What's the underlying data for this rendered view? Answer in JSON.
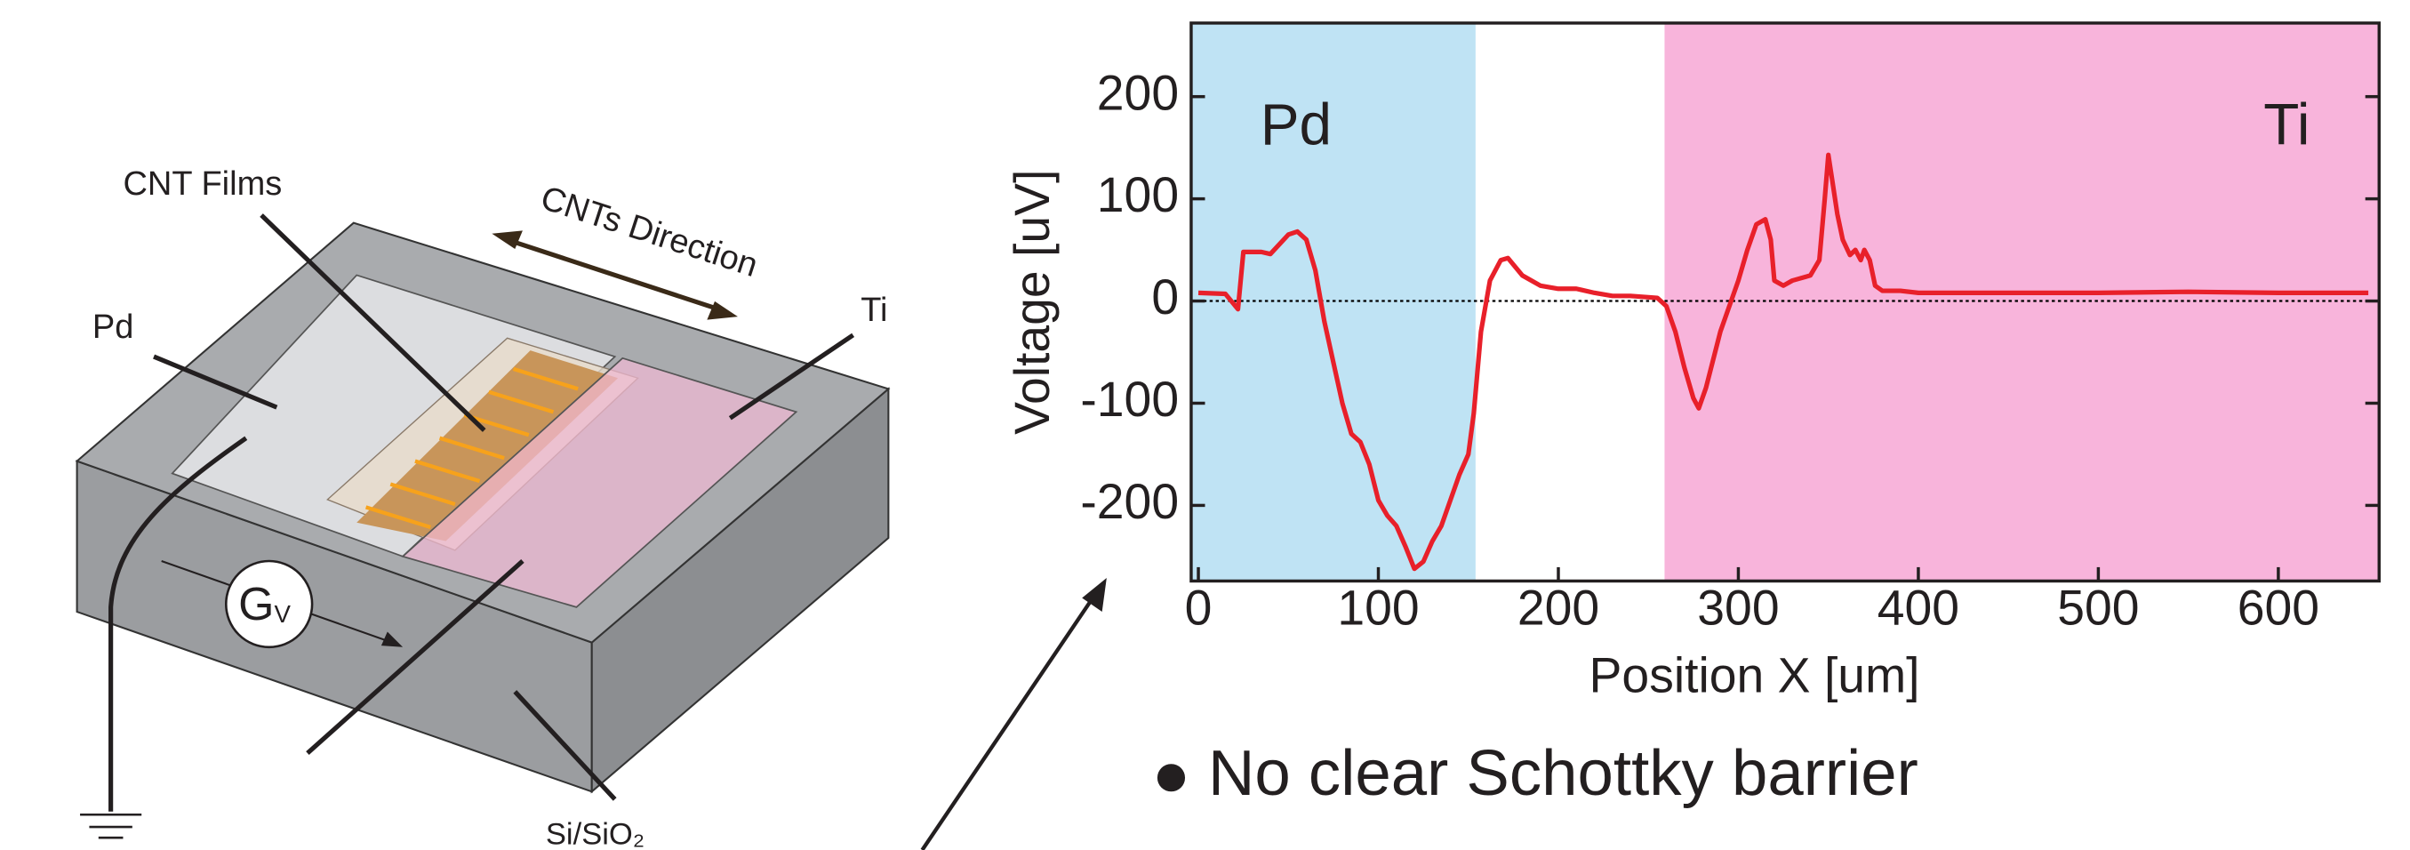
{
  "chart_data": {
    "type": "line",
    "x": [
      0,
      15,
      22,
      25,
      35,
      40,
      50,
      55,
      60,
      65,
      70,
      75,
      80,
      85,
      90,
      95,
      100,
      105,
      110,
      115,
      120,
      125,
      130,
      135,
      140,
      145,
      150,
      153,
      157,
      162,
      168,
      172,
      180,
      190,
      200,
      210,
      220,
      230,
      240,
      255,
      260,
      265,
      270,
      275,
      278,
      282,
      290,
      300,
      305,
      310,
      315,
      318,
      320,
      325,
      330,
      340,
      345,
      348,
      350,
      352,
      355,
      358,
      362,
      365,
      368,
      370,
      373,
      376,
      380,
      390,
      400,
      450,
      500,
      550,
      600,
      650
    ],
    "series": [
      {
        "color": "#e8202a",
        "values": [
          8,
          7,
          -8,
          48,
          48,
          46,
          65,
          68,
          60,
          30,
          -20,
          -60,
          -100,
          -130,
          -138,
          -160,
          -195,
          -210,
          -220,
          -240,
          -262,
          -255,
          -235,
          -220,
          -195,
          -170,
          -150,
          -110,
          -30,
          20,
          40,
          42,
          25,
          15,
          12,
          12,
          8,
          5,
          5,
          3,
          -5,
          -30,
          -65,
          -95,
          -105,
          -85,
          -30,
          20,
          50,
          75,
          80,
          60,
          20,
          15,
          20,
          25,
          40,
          100,
          143,
          120,
          85,
          60,
          45,
          50,
          40,
          50,
          40,
          15,
          10,
          10,
          8,
          8,
          8,
          9,
          8,
          8
        ]
      }
    ],
    "xlim": [
      -4,
      656
    ],
    "xticks": [
      0,
      100,
      200,
      300,
      400,
      500,
      600
    ],
    "ylim": [
      -274,
      272
    ],
    "yticks": [
      -200,
      -100,
      0,
      100,
      200
    ],
    "hline": 0,
    "x_label": "Position X [um]",
    "y_label": "Voltage [uV]",
    "regions": [
      {
        "label": "Pd",
        "start": -4,
        "end": 154,
        "color": "#bfe3f4"
      },
      {
        "label": "Ti",
        "start": 259,
        "end": 656,
        "color": "#f8b4db"
      }
    ]
  },
  "note": "No clear Schottky barrier",
  "diagram": {
    "cnt_films": "CNT Films",
    "direction": "CNTs Direction",
    "pd": "Pd",
    "ti": "Ti",
    "substrate": "Si/SiO₂",
    "meter": {
      "label": "G",
      "subscript": "V"
    }
  }
}
